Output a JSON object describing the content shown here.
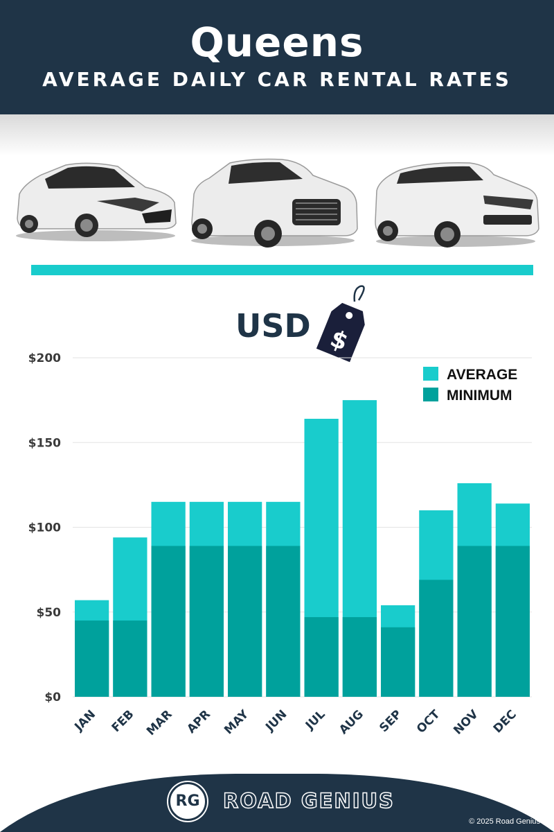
{
  "header": {
    "title": "Queens",
    "subtitle": "AVERAGE DAILY CAR RENTAL RATES"
  },
  "currency": {
    "label": "USD",
    "tag_symbol": "$"
  },
  "colors": {
    "header_bg": "#1f3447",
    "average": "#19cccc",
    "minimum": "#00a19c",
    "accent_bar": "#19cccc"
  },
  "chart_data": {
    "type": "bar",
    "stacked": "overlay",
    "categories": [
      "JAN",
      "FEB",
      "MAR",
      "APR",
      "MAY",
      "JUN",
      "JUL",
      "AUG",
      "SEP",
      "OCT",
      "NOV",
      "DEC"
    ],
    "series": [
      {
        "name": "AVERAGE",
        "color": "#19cccc",
        "values": [
          57,
          94,
          115,
          115,
          115,
          115,
          164,
          175,
          54,
          110,
          126,
          114
        ]
      },
      {
        "name": "MINIMUM",
        "color": "#00a19c",
        "values": [
          45,
          45,
          89,
          89,
          89,
          89,
          47,
          47,
          41,
          69,
          89,
          89
        ]
      }
    ],
    "ylim": [
      0,
      200
    ],
    "yticks": [
      0,
      50,
      100,
      150,
      200
    ],
    "ytick_labels": [
      "$0",
      "$50",
      "$100",
      "$150",
      "$200"
    ],
    "grid": true,
    "legend": "top-right"
  },
  "footer": {
    "badge": "RG",
    "brand": "ROAD GENIUS",
    "copyright": "© 2025 Road Genius"
  }
}
